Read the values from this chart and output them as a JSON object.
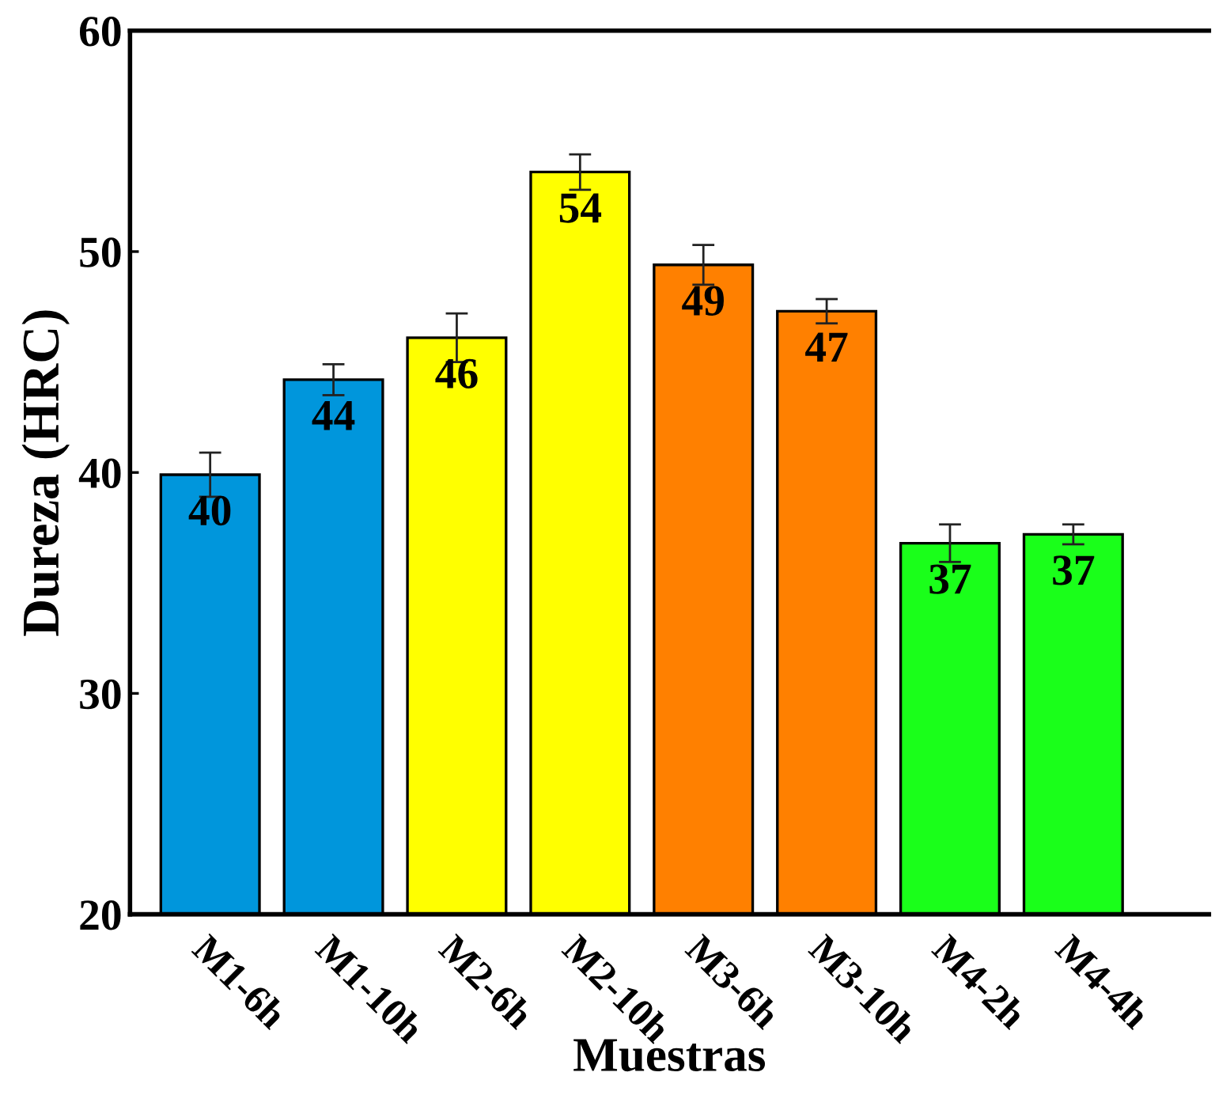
{
  "chart_data": {
    "type": "bar",
    "xlabel": "Muestras",
    "ylabel": "Dureza (HRC)",
    "categories": [
      "M1-6h",
      "M1-10h",
      "M2-6h",
      "M2-10h",
      "M3-6h",
      "M3-10h",
      "M4-2h",
      "M4-4h"
    ],
    "values": [
      39.9,
      44.2,
      46.1,
      53.6,
      49.4,
      47.3,
      36.8,
      37.2
    ],
    "errors": [
      1.0,
      0.7,
      1.1,
      0.8,
      0.9,
      0.55,
      0.85,
      0.45
    ],
    "value_labels": [
      "40",
      "44",
      "46",
      "54",
      "49",
      "47",
      "37",
      "37"
    ],
    "colors": [
      "#0096dc",
      "#0096dc",
      "#ffff00",
      "#ffff00",
      "#ff8000",
      "#ff8000",
      "#1aff1a",
      "#1aff1a"
    ],
    "ylim": [
      20,
      60
    ],
    "yticks": [
      20,
      30,
      40,
      50,
      60
    ],
    "grid": false,
    "legend": false
  }
}
